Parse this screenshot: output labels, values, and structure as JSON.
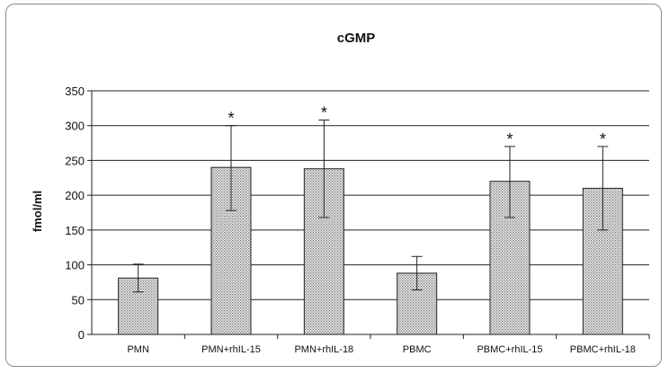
{
  "chart_data": {
    "type": "bar",
    "title": "cGMP",
    "xlabel": "",
    "ylabel": "fmol/ml",
    "ylim": [
      0,
      350
    ],
    "yticks": [
      0,
      50,
      100,
      150,
      200,
      250,
      300,
      350
    ],
    "categories": [
      "PMN",
      "PMN+rhIL-15",
      "PMN+rhIL-18",
      "PBMC",
      "PBMC+rhIL-15",
      "PBMC+rhIL-18"
    ],
    "values": [
      81,
      240,
      238,
      88,
      220,
      210
    ],
    "error_low": [
      61,
      178,
      168,
      64,
      168,
      150
    ],
    "error_high": [
      101,
      300,
      308,
      112,
      270,
      270
    ],
    "annotations": [
      "",
      "*",
      "*",
      "",
      "*",
      "*"
    ],
    "grid": true,
    "bar_color": "#cfcfcf"
  }
}
